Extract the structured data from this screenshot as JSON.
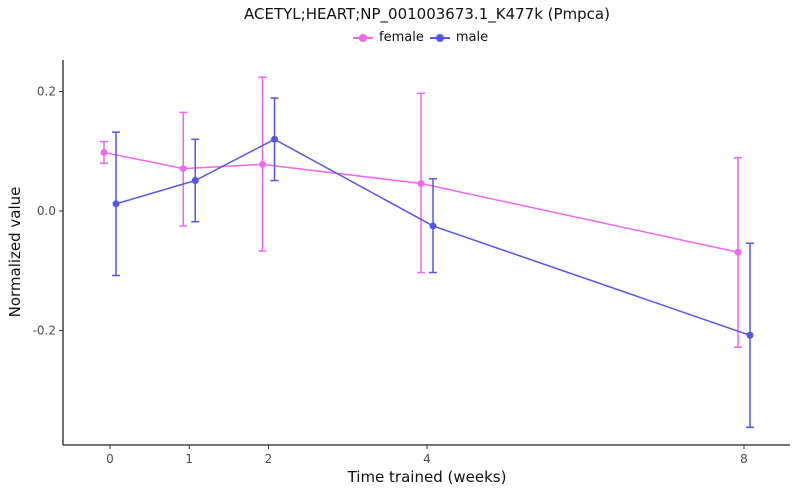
{
  "chart_data": {
    "type": "line",
    "title": "ACETYL;HEART;NP_001003673.1_K477k (Pmpca)",
    "xlabel": "Time trained (weeks)",
    "ylabel": "Normalized value",
    "x": [
      0,
      1,
      2,
      4,
      8
    ],
    "x_tick_labels": [
      "0",
      "1",
      "2",
      "4",
      "8"
    ],
    "y_tick_values": [
      0.2,
      0.0,
      -0.2
    ],
    "y_tick_labels": [
      "0.2",
      "0.0",
      "-0.2"
    ],
    "ylim": [
      -0.39,
      0.25
    ],
    "xlim": [
      -0.6,
      8.6
    ],
    "grid": false,
    "legend_position": "top",
    "error_bars": true,
    "series": [
      {
        "name": "female",
        "color": "#F067F0",
        "values": [
          0.098,
          0.071,
          0.078,
          0.046,
          -0.069
        ],
        "lower": [
          0.08,
          -0.025,
          -0.067,
          -0.103,
          -0.228
        ],
        "upper": [
          0.116,
          0.165,
          0.224,
          0.197,
          0.089
        ]
      },
      {
        "name": "male",
        "color": "#5555E8",
        "values": [
          0.012,
          0.051,
          0.12,
          -0.025,
          -0.208
        ],
        "lower": [
          -0.108,
          -0.018,
          0.051,
          -0.103,
          -0.362
        ],
        "upper": [
          0.132,
          0.12,
          0.189,
          0.054,
          -0.054
        ]
      }
    ]
  },
  "legend": {
    "items": [
      {
        "label": "female",
        "color": "#F067F0"
      },
      {
        "label": "male",
        "color": "#5555E8"
      }
    ]
  }
}
